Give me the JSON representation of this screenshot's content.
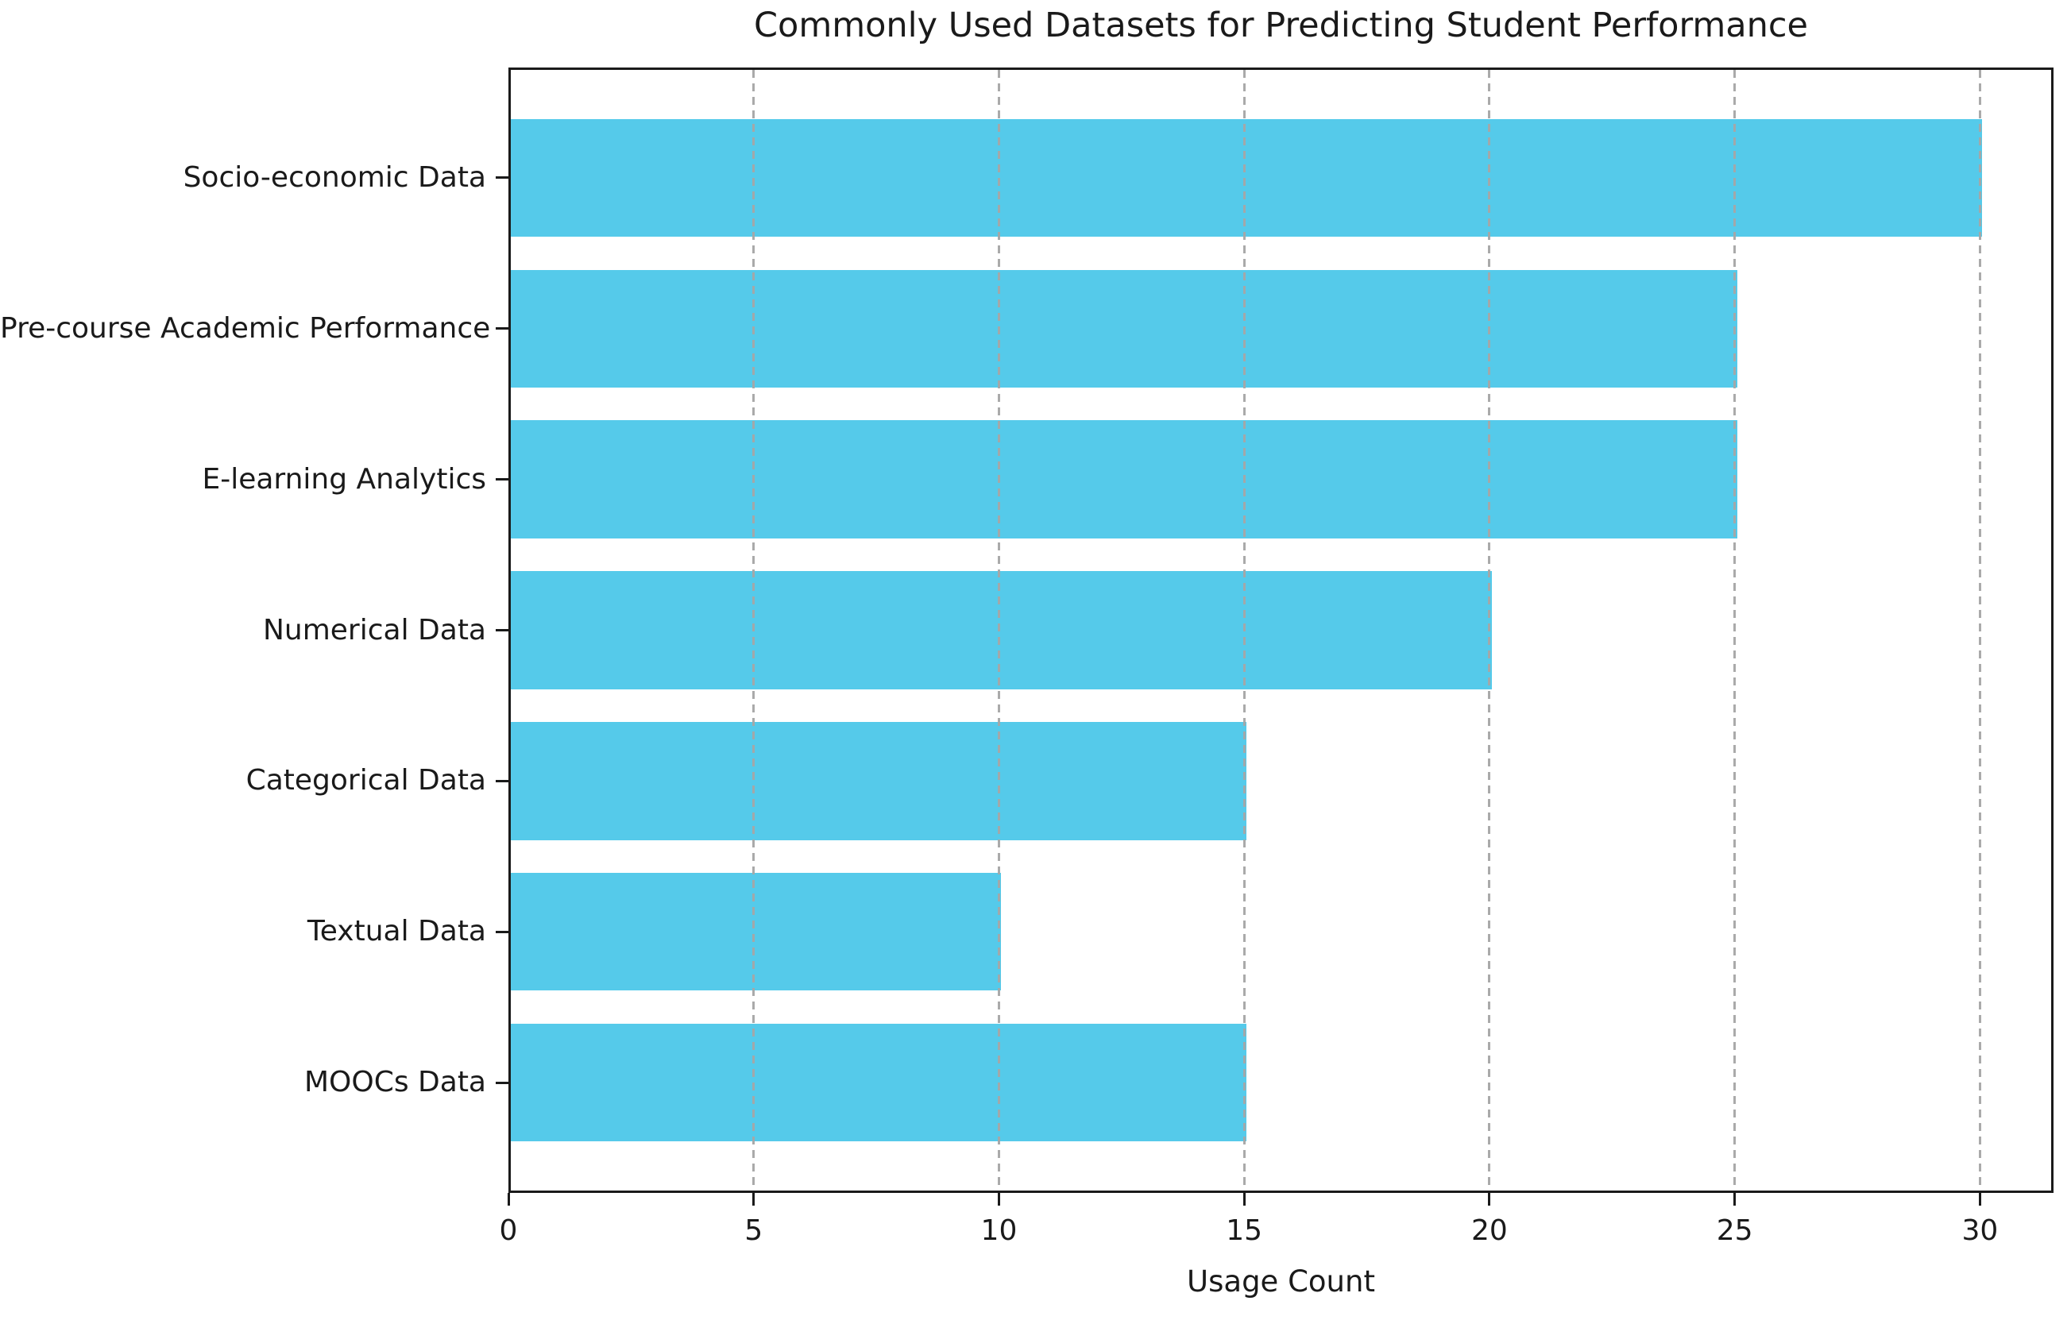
{
  "chart_data": {
    "type": "bar",
    "orientation": "horizontal",
    "title": "Commonly Used Datasets for Predicting Student Performance",
    "xlabel": "Usage Count",
    "ylabel": "",
    "categories": [
      "Socio-economic Data",
      "Pre-course Academic Performance",
      "E-learning Analytics",
      "Numerical Data",
      "Categorical Data",
      "Textual Data",
      "MOOCs Data"
    ],
    "values": [
      30,
      25,
      25,
      20,
      15,
      10,
      15
    ],
    "xticks": [
      0,
      5,
      10,
      15,
      20,
      25,
      30
    ],
    "xlim": [
      0,
      31.5
    ],
    "grid": "vertical-dashed-over-bars",
    "legend": "none",
    "bar_color": "#55caea",
    "grid_color": "#a6a6a6",
    "spine_color": "#1a1a1a",
    "text_color": "#1a1a1a",
    "background_color": "#ffffff"
  }
}
